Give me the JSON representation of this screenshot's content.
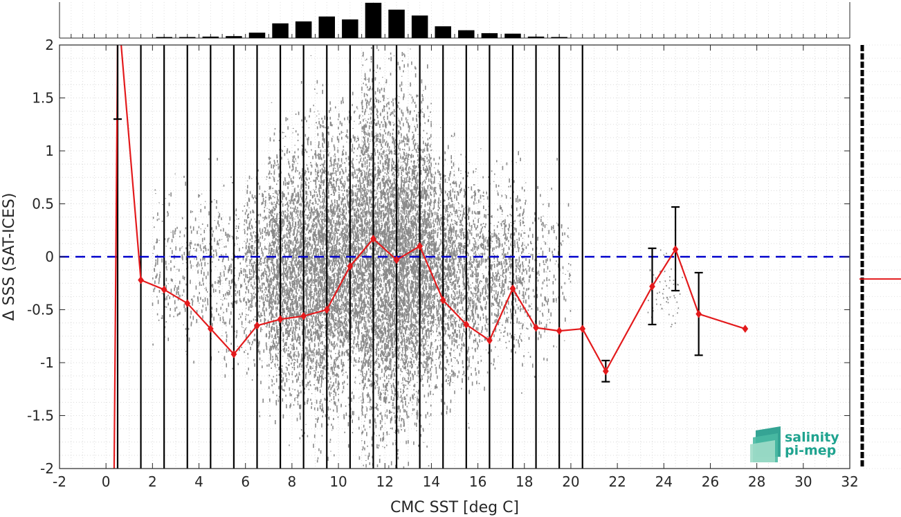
{
  "chart_data": {
    "type": "line",
    "xlabel": "CMC SST [deg C]",
    "ylabel": "Δ SSS (SAT-ICES)",
    "xlim": [
      -2,
      32
    ],
    "ylim": [
      -2,
      2
    ],
    "xticks": [
      -2,
      0,
      2,
      4,
      6,
      8,
      10,
      12,
      14,
      16,
      18,
      20,
      22,
      24,
      26,
      28,
      30,
      32
    ],
    "yticks": [
      -2,
      -1.5,
      -1,
      -0.5,
      0,
      0.5,
      1,
      1.5,
      2
    ],
    "xtick_labels": [
      "-2",
      "0",
      "2",
      "4",
      "6",
      "8",
      "10",
      "12",
      "14",
      "16",
      "18",
      "20",
      "22",
      "24",
      "26",
      "28",
      "30",
      "32"
    ],
    "ytick_labels": [
      "-2",
      "-1.5",
      "-1",
      "-0.5",
      "0",
      "0.5",
      "1",
      "1.5",
      "2"
    ],
    "grid": true,
    "zero_line": {
      "y": 0,
      "color": "#0000cc",
      "style": "dashed"
    },
    "series": [
      {
        "color": "#e31a1c",
        "x": [
          0.5,
          1.5,
          2.5,
          3.5,
          4.5,
          5.5,
          6.5,
          7.5,
          8.5,
          9.5,
          10.5,
          11.5,
          12.5,
          13.5,
          14.5,
          15.5,
          16.5,
          17.5,
          18.5,
          19.5,
          20.5,
          21.5,
          23.5,
          24.5,
          25.5,
          27.5
        ],
        "y": [
          2.4,
          -0.22,
          -0.31,
          -0.44,
          -0.68,
          -0.92,
          -0.65,
          -0.59,
          -0.56,
          -0.5,
          -0.09,
          0.17,
          -0.03,
          0.1,
          -0.41,
          -0.64,
          -0.79,
          -0.3,
          -0.67,
          -0.7,
          -0.68,
          -1.08,
          -0.28,
          0.07,
          -0.54,
          -0.68
        ]
      }
    ],
    "offscale_segment": {
      "x": [
        0.35,
        0.5
      ],
      "y": [
        -2,
        2
      ]
    },
    "error_bars": [
      {
        "x": 0.5,
        "low": 1.3,
        "high": 2.4
      },
      {
        "x": 21.5,
        "low": -1.18,
        "high": -0.98
      },
      {
        "x": 23.5,
        "low": -0.64,
        "high": 0.08
      },
      {
        "x": 24.5,
        "low": -0.32,
        "high": 0.47
      },
      {
        "x": 25.5,
        "low": -0.93,
        "high": -0.15
      }
    ],
    "bin_lines_x": [
      0.5,
      1.5,
      2.5,
      3.5,
      4.5,
      5.5,
      6.5,
      7.5,
      8.5,
      9.5,
      10.5,
      11.5,
      12.5,
      13.5,
      14.5,
      15.5,
      16.5,
      17.5,
      18.5,
      19.5,
      20.5
    ],
    "histogram": {
      "x": [
        2.5,
        3.5,
        4.5,
        5.5,
        6.5,
        7.5,
        8.5,
        9.5,
        10.5,
        11.5,
        12.5,
        13.5,
        14.5,
        15.5,
        16.5,
        17.5,
        18.5,
        19.5
      ],
      "counts": [
        2,
        2,
        3,
        4,
        11,
        30,
        34,
        44,
        38,
        72,
        58,
        46,
        24,
        16,
        10,
        9,
        3,
        1
      ]
    },
    "side_marginal": {
      "mean": -0.21,
      "color": "#e31a1c"
    }
  },
  "logo": {
    "line1": "salinity",
    "line2": "pi-mep",
    "color": "#1fa38f"
  }
}
